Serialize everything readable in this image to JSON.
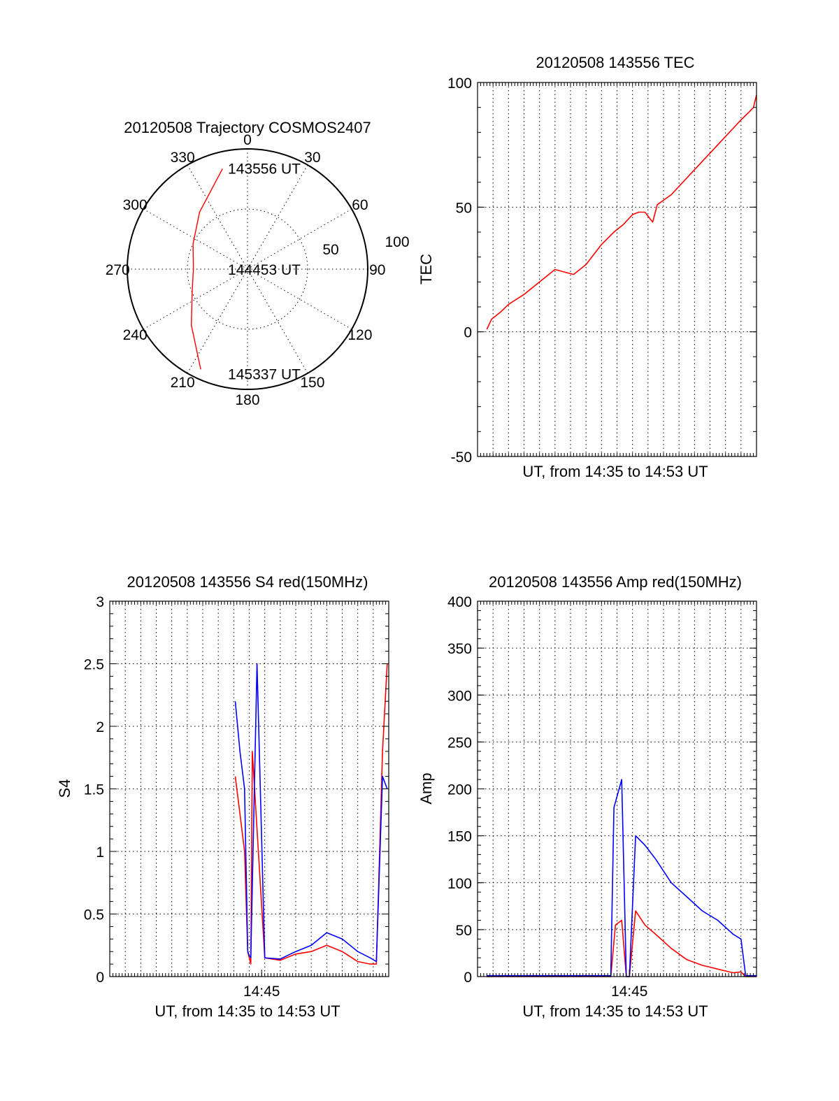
{
  "chart_data": [
    {
      "type": "polar",
      "title": "20120508 Trajectory COSMOS2407",
      "angle_labels": [
        "0",
        "30",
        "60",
        "90",
        "120",
        "150",
        "180",
        "210",
        "240",
        "270",
        "300",
        "330"
      ],
      "radial_labels": [
        "50",
        "100"
      ],
      "series": [
        {
          "color": "#ff0000",
          "points": [
            {
              "az": 346,
              "r": 86
            },
            {
              "az": 320,
              "r": 62
            },
            {
              "az": 295,
              "r": 50
            },
            {
              "az": 270,
              "r": 45
            },
            {
              "az": 247,
              "r": 50
            },
            {
              "az": 225,
              "r": 66
            },
            {
              "az": 205,
              "r": 92
            }
          ]
        }
      ],
      "annotations": [
        {
          "text": "143556 UT",
          "az": 0,
          "r": 84
        },
        {
          "text": "144453 UT",
          "az": 0,
          "r": 0
        },
        {
          "text": "145337 UT",
          "az": 180,
          "r": 87
        }
      ]
    },
    {
      "type": "line",
      "title": "20120508 143556 TEC",
      "xlabel": "UT, from 14:35 to 14:53 UT",
      "ylabel": "TEC",
      "xlim": [
        0,
        18
      ],
      "ylim": [
        -50,
        100
      ],
      "yticks": [
        "-50",
        "0",
        "50",
        "100"
      ],
      "grid": true,
      "series": [
        {
          "color": "#ff0000",
          "x": [
            0.6,
            0.9,
            1.5,
            2.0,
            3.0,
            4.0,
            5.0,
            5.6,
            6.2,
            7.0,
            8.0,
            8.8,
            9.4,
            10.0,
            10.4,
            10.8,
            11.3,
            11.6,
            12.5,
            14.0,
            15.5,
            17.0,
            17.5,
            17.8,
            18.0
          ],
          "y": [
            1,
            5,
            8,
            11,
            15,
            20,
            25,
            24,
            23,
            27,
            35,
            40,
            43,
            47,
            48,
            48,
            44,
            51,
            55,
            65,
            75,
            85,
            88,
            90,
            95
          ]
        }
      ]
    },
    {
      "type": "line",
      "title": "20120508 143556 S4 red(150MHz)",
      "xlabel": "UT, from 14:35 to 14:53 UT",
      "ylabel": "S4",
      "xlim": [
        0,
        18
      ],
      "ylim": [
        0,
        3
      ],
      "yticks": [
        "0",
        "0.5",
        "1",
        "1.5",
        "2",
        "2.5",
        "3"
      ],
      "xtick_labels": [
        "14:45"
      ],
      "grid": true,
      "series": [
        {
          "color": "#ff0000",
          "x": [
            8.1,
            8.4,
            8.7,
            8.9,
            9.0,
            9.1,
            9.2,
            10.0,
            11.0,
            12.0,
            13.0,
            14.0,
            15.0,
            16.0,
            16.8,
            17.2,
            17.6,
            17.9
          ],
          "y": [
            1.6,
            1.3,
            1.0,
            0.2,
            0.15,
            0.1,
            1.8,
            0.15,
            0.13,
            0.18,
            0.2,
            0.25,
            0.2,
            0.12,
            0.1,
            0.1,
            1.8,
            2.5
          ]
        },
        {
          "color": "#0000ff",
          "x": [
            8.1,
            8.4,
            8.7,
            8.9,
            9.0,
            9.1,
            9.5,
            10.0,
            11.0,
            12.0,
            13.0,
            14.0,
            15.0,
            16.0,
            16.8,
            17.2,
            17.6,
            17.9
          ],
          "y": [
            2.2,
            1.8,
            1.5,
            0.2,
            0.17,
            0.15,
            2.5,
            0.15,
            0.14,
            0.2,
            0.25,
            0.35,
            0.3,
            0.2,
            0.15,
            0.12,
            1.6,
            1.5
          ]
        }
      ]
    },
    {
      "type": "line",
      "title": "20120508 143556 Amp red(150MHz)",
      "xlabel": "UT, from 14:35 to 14:53 UT",
      "ylabel": "Amp",
      "xlim": [
        0,
        18
      ],
      "ylim": [
        0,
        400
      ],
      "yticks": [
        "0",
        "50",
        "100",
        "150",
        "200",
        "250",
        "300",
        "350",
        "400"
      ],
      "xtick_labels": [
        "14:45"
      ],
      "grid": true,
      "series": [
        {
          "color": "#ff0000",
          "x": [
            0.6,
            8.6,
            8.9,
            9.3,
            9.6,
            9.8,
            10.2,
            10.8,
            11.5,
            12.5,
            13.5,
            14.5,
            15.5,
            16.5,
            17.0,
            17.3,
            18.0
          ],
          "y": [
            0,
            0,
            55,
            60,
            0,
            0,
            70,
            55,
            45,
            30,
            18,
            12,
            8,
            4,
            5,
            0,
            0
          ]
        },
        {
          "color": "#0000ff",
          "x": [
            0.6,
            8.6,
            8.8,
            9.3,
            9.6,
            9.8,
            10.2,
            10.8,
            11.5,
            12.5,
            13.5,
            14.5,
            15.5,
            16.5,
            17.0,
            17.3,
            18.0
          ],
          "y": [
            1,
            1,
            180,
            210,
            0,
            0,
            150,
            140,
            125,
            100,
            85,
            70,
            60,
            45,
            40,
            1,
            1
          ]
        }
      ]
    }
  ]
}
